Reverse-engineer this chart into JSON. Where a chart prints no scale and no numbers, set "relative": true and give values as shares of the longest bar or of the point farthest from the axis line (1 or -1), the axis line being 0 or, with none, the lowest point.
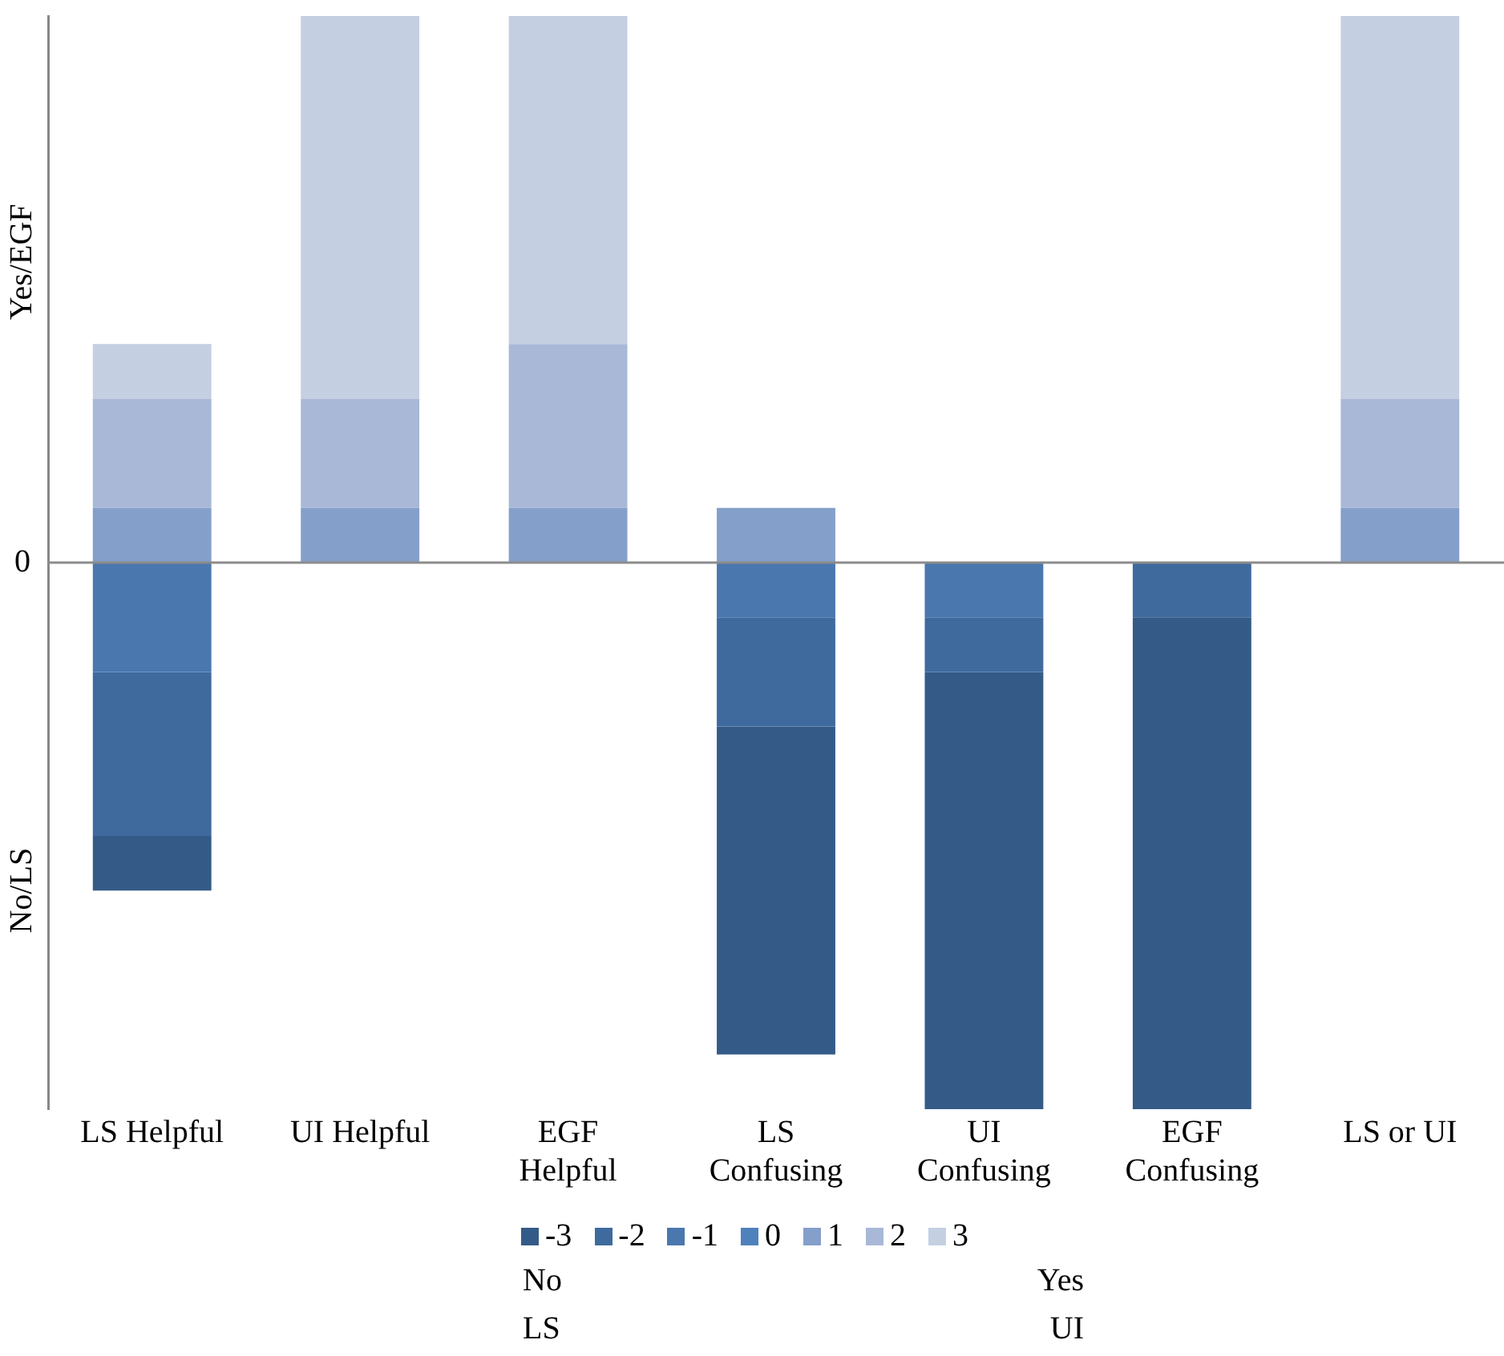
{
  "chart_data": {
    "type": "bar",
    "stacked": true,
    "relative": true,
    "legend": "bottom",
    "categories": [
      "LS Helpful",
      "UI Helpful",
      "EGF Helpful",
      "LS Confusing",
      "UI Confusing",
      "EGF Confusing",
      "LS or UI"
    ],
    "series": [
      {
        "name": "-3",
        "color": "#345a87",
        "values": [
          -0.1,
          null,
          null,
          -0.6,
          -0.8,
          -0.9,
          null
        ]
      },
      {
        "name": "-2",
        "color": "#3f6a9e",
        "values": [
          -0.3,
          null,
          null,
          -0.2,
          -0.1,
          -0.1,
          null
        ]
      },
      {
        "name": "-1",
        "color": "#4a77ae",
        "values": [
          -0.2,
          null,
          null,
          -0.1,
          -0.1,
          null,
          null
        ]
      },
      {
        "name": "0",
        "color": "#4f81bd",
        "values": [
          null,
          null,
          null,
          null,
          null,
          null,
          null
        ]
      },
      {
        "name": "1",
        "color": "#849fca",
        "values": [
          0.1,
          0.1,
          0.1,
          0.1,
          null,
          null,
          0.1
        ]
      },
      {
        "name": "2",
        "color": "#a9b8d7",
        "values": [
          0.2,
          0.2,
          0.3,
          null,
          null,
          null,
          0.2
        ]
      },
      {
        "name": "3",
        "color": "#c4cfe2",
        "values": [
          0.1,
          0.7,
          0.6,
          null,
          null,
          null,
          0.7
        ]
      }
    ],
    "ref_lines": [
      {
        "axis": "y",
        "value": 0,
        "label": "0",
        "color": "#8c8c8c"
      }
    ],
    "annotations": [
      "Yes/EGF",
      "No/LS",
      "No\nLS",
      "Yes\nUI"
    ]
  }
}
